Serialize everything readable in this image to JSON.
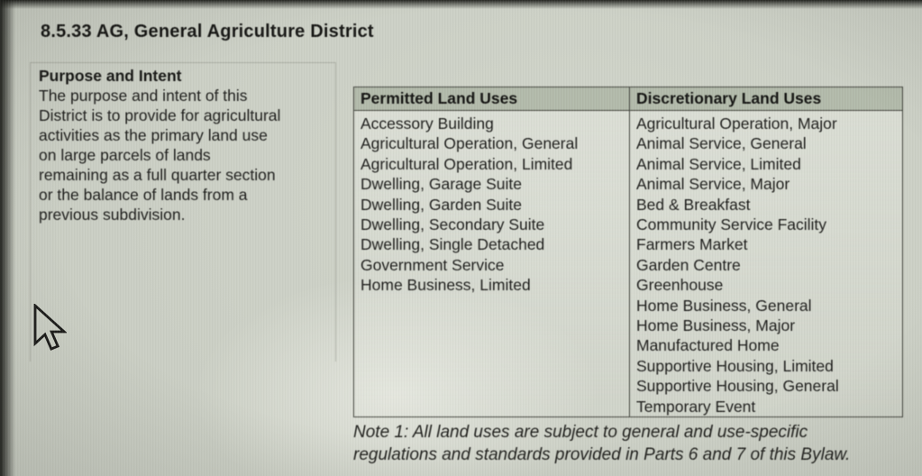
{
  "document": {
    "title": "8.5.33 AG, General Agriculture District",
    "purpose": {
      "heading": "Purpose and Intent",
      "lines": [
        "The purpose and intent of this",
        "District is to provide for agricultural",
        "activities as the primary land use",
        "on large parcels of lands",
        "remaining as a full quarter section",
        "or the balance of lands from a",
        "previous subdivision."
      ]
    },
    "land_use_table": {
      "permitted": {
        "header": "Permitted Land Uses",
        "items": [
          "Accessory Building",
          "Agricultural Operation, General",
          "Agricultural Operation, Limited",
          "Dwelling, Garage Suite",
          "Dwelling, Garden Suite",
          "Dwelling, Secondary Suite",
          "Dwelling, Single Detached",
          "Government Service",
          "Home Business, Limited"
        ]
      },
      "discretionary": {
        "header": "Discretionary Land Uses",
        "items": [
          "Agricultural Operation, Major",
          "Animal Service, General",
          "Animal Service, Limited",
          "Animal Service, Major",
          "Bed & Breakfast",
          "Community Service Facility",
          "Farmers Market",
          "Garden Centre",
          "Greenhouse",
          "Home Business, General",
          "Home Business, Major",
          "Manufactured Home",
          "Supportive Housing, Limited",
          "Supportive Housing, General",
          "Temporary Event"
        ]
      }
    },
    "note_lines": [
      "Note 1: All land uses are subject to general and use-specific",
      "regulations and standards provided in Parts 6 and 7 of this Bylaw."
    ]
  },
  "cursor": {
    "icon": "arrow-pointer"
  },
  "colors": {
    "page_background": "#c6cabf",
    "table_header_background": "#b2baaa",
    "table_border": "#44463f",
    "text_color": "#1d1d1b"
  }
}
